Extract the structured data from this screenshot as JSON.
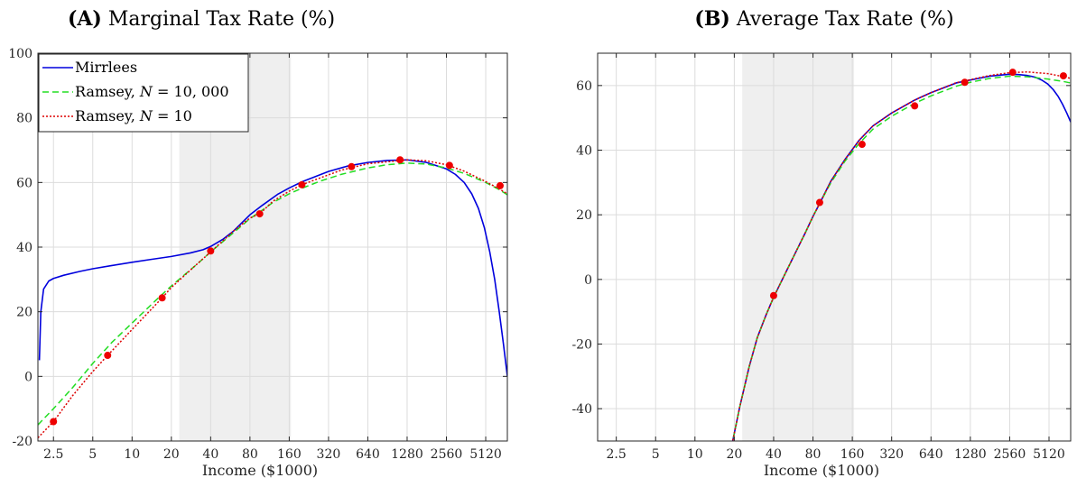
{
  "chart_data": [
    {
      "type": "line",
      "panel_label": "(A)",
      "title": "Marginal Tax Rate (%)",
      "xlabel": "Income ($1000)",
      "ylabel": "",
      "x_scale": "log2",
      "xlim": [
        1.9,
        7500
      ],
      "ylim": [
        -20,
        100
      ],
      "x_ticks": [
        2.5,
        5,
        10,
        20,
        40,
        80,
        160,
        320,
        640,
        1280,
        2560,
        5120
      ],
      "x_tick_labels": [
        "2.5",
        "5",
        "10",
        "20",
        "40",
        "80",
        "160",
        "320",
        "640",
        "1280",
        "2560",
        "5120"
      ],
      "y_ticks": [
        -20,
        0,
        20,
        40,
        60,
        80,
        100
      ],
      "y_tick_labels": [
        "-20",
        "0",
        "20",
        "40",
        "60",
        "80",
        "100"
      ],
      "grid": true,
      "shaded_region": [
        23,
        165
      ],
      "legend_position": "top-left",
      "series": [
        {
          "name": "Mirrlees",
          "style": "solid",
          "color": "#0000dd",
          "x": [
            1.95,
            2.0,
            2.1,
            2.3,
            2.5,
            3,
            4,
            5,
            7,
            10,
            14,
            20,
            28,
            35,
            40,
            50,
            60,
            80,
            100,
            130,
            160,
            200,
            280,
            320,
            450,
            640,
            900,
            1280,
            1800,
            2560,
            3000,
            3500,
            4000,
            4500,
            5000,
            5500,
            6000,
            6500,
            7000,
            7500
          ],
          "y": [
            5,
            20,
            27,
            29.5,
            30.3,
            31.3,
            32.5,
            33.3,
            34.3,
            35.3,
            36.2,
            37.1,
            38.2,
            39.2,
            40.2,
            42.5,
            45,
            50,
            53,
            56.3,
            58.3,
            60.2,
            62.5,
            63.4,
            65.1,
            66.2,
            66.8,
            67,
            66.2,
            64.2,
            62.5,
            60,
            56.5,
            52,
            46,
            38.5,
            30,
            20,
            10,
            0
          ]
        },
        {
          "name": "Ramsey, N = 10,000",
          "style": "dashed",
          "color": "#22dd22",
          "x": [
            1.9,
            2.5,
            3.5,
            5,
            7,
            10,
            15,
            20,
            30,
            40,
            60,
            80,
            100,
            120,
            160,
            200,
            280,
            400,
            640,
            900,
            1280,
            1800,
            2560,
            3500,
            5000,
            6500,
            7500
          ],
          "y": [
            -15,
            -10,
            -3.5,
            4,
            10.5,
            16.5,
            23.3,
            28,
            34,
            38.5,
            44.5,
            48.8,
            51.5,
            53.8,
            56.5,
            58.2,
            60.5,
            62.5,
            64.5,
            65.5,
            66,
            65.7,
            64.5,
            62.8,
            60.2,
            57.8,
            56.2
          ]
        },
        {
          "name": "Ramsey, N = 10",
          "style": "dotted",
          "color": "#dd0000",
          "x": [
            1.9,
            2.5,
            3.5,
            5,
            6.5,
            10,
            17,
            20,
            30,
            40,
            60,
            80,
            95,
            120,
            160,
            200,
            280,
            400,
            640,
            1280,
            1800,
            2560,
            3500,
            5000,
            6500,
            7500
          ],
          "y": [
            -19,
            -14,
            -6,
            1.5,
            6.5,
            14.5,
            24.3,
            27.5,
            34,
            38.5,
            45,
            49,
            50.3,
            54.2,
            57.3,
            59.3,
            61.5,
            63.8,
            65.8,
            67,
            66.7,
            65.5,
            63.5,
            60.5,
            58,
            56.5
          ]
        }
      ],
      "markers": {
        "color": "#ee0000",
        "x": [
          2.5,
          6.5,
          17,
          40,
          95,
          200,
          480,
          1130,
          2700,
          6600
        ],
        "y": [
          -14,
          6.5,
          24.3,
          38.8,
          50.3,
          59.3,
          64.9,
          67.0,
          65.3,
          59.0
        ]
      },
      "legend": {
        "entries": [
          {
            "text": "Mirrlees",
            "var": "",
            "rest": ""
          },
          {
            "text": "Ramsey, ",
            "var": "N",
            "rest": " = 10, 000"
          },
          {
            "text": "Ramsey, ",
            "var": "N",
            "rest": " = 10"
          }
        ]
      }
    },
    {
      "type": "line",
      "panel_label": "(B)",
      "title": "Average Tax Rate (%)",
      "xlabel": "Income ($1000)",
      "ylabel": "",
      "x_scale": "log2",
      "xlim": [
        1.8,
        7500
      ],
      "ylim": [
        -50,
        70
      ],
      "x_ticks": [
        2.5,
        5,
        10,
        20,
        40,
        80,
        160,
        320,
        640,
        1280,
        2560,
        5120
      ],
      "x_tick_labels": [
        "2.5",
        "5",
        "10",
        "20",
        "40",
        "80",
        "160",
        "320",
        "640",
        "1280",
        "2560",
        "5120"
      ],
      "y_ticks": [
        -40,
        -20,
        0,
        20,
        40,
        60
      ],
      "y_tick_labels": [
        "-40",
        "-20",
        "0",
        "20",
        "40",
        "60"
      ],
      "grid": true,
      "shaded_region": [
        23,
        165
      ],
      "legend_position": "none",
      "series": [
        {
          "name": "Mirrlees",
          "style": "solid",
          "color": "#0000dd",
          "x": [
            19,
            22,
            26,
            30,
            35,
            40,
            50,
            60,
            70,
            80,
            90,
            110,
            140,
            180,
            230,
            320,
            480,
            640,
            1000,
            1280,
            1800,
            2560,
            3000,
            3500,
            4000,
            4500,
            5000,
            5500,
            6000,
            6500,
            7000,
            7500
          ],
          "y": [
            -52,
            -39.5,
            -27,
            -18,
            -11,
            -5.5,
            2.5,
            9,
            14.5,
            19.5,
            23.5,
            30.5,
            37,
            43,
            47.5,
            51.5,
            55.5,
            57.8,
            60.8,
            61.7,
            62.9,
            63.5,
            63.4,
            63.1,
            62.6,
            61.7,
            60.5,
            58.8,
            56.7,
            54.2,
            51.5,
            48.7
          ]
        },
        {
          "name": "Ramsey, N = 10,000",
          "style": "dashed",
          "color": "#22dd22",
          "x": [
            19,
            22,
            26,
            30,
            35,
            40,
            50,
            60,
            70,
            80,
            90,
            110,
            140,
            180,
            230,
            320,
            480,
            640,
            1000,
            1280,
            1800,
            2560,
            3500,
            5000,
            6500,
            7500
          ],
          "y": [
            -52,
            -39.5,
            -27,
            -18,
            -11,
            -5.5,
            2.5,
            9,
            14.5,
            19.5,
            23.5,
            30,
            36.5,
            42,
            46.5,
            50.5,
            54.5,
            56.8,
            59.8,
            61,
            62.2,
            62.9,
            62.7,
            62,
            61.3,
            60.8
          ]
        },
        {
          "name": "Ramsey, N = 10",
          "style": "dotted",
          "color": "#dd0000",
          "x": [
            19,
            22,
            26,
            30,
            35,
            40,
            50,
            60,
            70,
            80,
            90,
            110,
            140,
            180,
            230,
            320,
            480,
            640,
            1000,
            1280,
            1800,
            2560,
            3500,
            5000,
            6500,
            7500
          ],
          "y": [
            -52,
            -39.5,
            -27,
            -18,
            -11,
            -5.5,
            2.5,
            9,
            14.5,
            19.5,
            23.5,
            30.5,
            37,
            43,
            47.5,
            51.5,
            55.5,
            57.8,
            60.9,
            61.8,
            63.1,
            64,
            64.2,
            63.7,
            62.8,
            62.2
          ]
        }
      ],
      "markers": {
        "color": "#ee0000",
        "x": [
          40,
          90,
          190,
          480,
          1160,
          2700,
          6600
        ],
        "y": [
          -5,
          23.8,
          41.8,
          53.7,
          61.0,
          64.1,
          63.0
        ]
      },
      "legend": {
        "entries": []
      }
    }
  ]
}
